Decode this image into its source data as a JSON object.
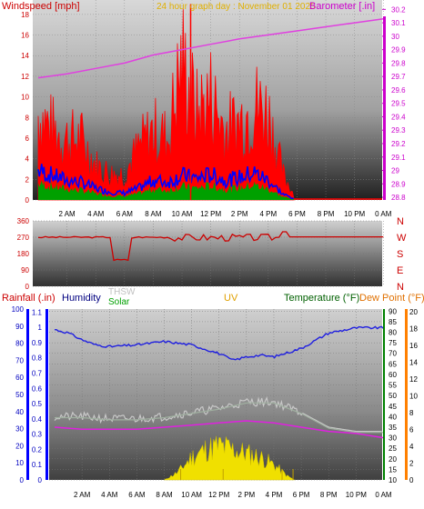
{
  "header": {
    "wind_label": "Windspeed [mph]",
    "title": "24 hour graph day : November 01 2025",
    "baro_label": "Barometer [.in]"
  },
  "legend": {
    "rainfall": "Rainfall (.in)",
    "humidity": "Humidity",
    "thsw": "THSW",
    "solar": "Solar",
    "uv": "UV",
    "temperature": "Temperature (°F)",
    "dewpoint": "Dew Point (°F)"
  },
  "colors": {
    "windspeed": "#ff0000",
    "wind_avg": "#0000ff",
    "wind_green": "#00a000",
    "barometer": "#e040e0",
    "direction": "#cc0000",
    "humidity": "#2020e0",
    "thsw": "#c8c8c8",
    "solar": "#00a000",
    "uv": "#e0a000",
    "temperature": "#006000",
    "dewpoint": "#e07000",
    "rainfall": "#c00000",
    "dewpoint_line": "#e020e0",
    "thsw_line": "#a0b0a0",
    "solar_fill": "#f0e000",
    "axis_blue": "#0000ff",
    "axis_orange": "#ff8000"
  },
  "x_ticks": [
    "2 AM",
    "4 AM",
    "6 AM",
    "8 AM",
    "10 AM",
    "12 PM",
    "2 PM",
    "4 PM",
    "6 PM",
    "8 PM",
    "10 PM",
    "0 AM"
  ],
  "chart_data": [
    {
      "type": "line",
      "title": "24 hour graph day : November 01 2025",
      "panel": "wind-baro",
      "left_axis": {
        "label": "Windspeed [mph]",
        "ticks": [
          "0",
          "2",
          "4",
          "6",
          "8",
          "10",
          "12",
          "14",
          "16",
          "18"
        ],
        "ylim": [
          0,
          19.4
        ]
      },
      "right_axis": {
        "label": "Barometer [.in]",
        "ticks": [
          "28.8",
          "28.9",
          "29",
          "29.1",
          "29.2",
          "29.3",
          "29.4",
          "29.5",
          "29.6",
          "29.7",
          "29.8",
          "29.9",
          "30",
          "30.1",
          "30.2"
        ],
        "ylim": [
          28.78,
          30.27
        ]
      },
      "x": [
        0,
        2,
        4,
        6,
        8,
        10,
        12,
        14,
        16,
        18,
        20,
        22,
        24
      ],
      "series": [
        {
          "name": "Barometer [.in]",
          "axis": "right",
          "x": [
            0,
            2,
            4,
            6,
            8,
            10,
            12,
            14,
            16,
            18,
            20,
            22,
            24
          ],
          "values": [
            29.69,
            29.72,
            29.76,
            29.8,
            29.86,
            29.9,
            29.94,
            29.98,
            30.01,
            30.04,
            30.07,
            30.1,
            30.13
          ]
        },
        {
          "name": "Windspeed [mph]",
          "axis": "left",
          "x": [
            0,
            1,
            2,
            3,
            4,
            5,
            6,
            7,
            8,
            9,
            10,
            11,
            12,
            13,
            14,
            15,
            16,
            17,
            18
          ],
          "values": [
            10,
            8,
            7,
            7,
            4,
            3,
            3,
            6,
            8,
            7,
            16,
            10,
            12,
            8,
            9,
            11,
            10,
            3,
            0
          ]
        },
        {
          "name": "",
          "axis": "left",
          "x": [
            0,
            1,
            2,
            3,
            4,
            5,
            6,
            7,
            8,
            9,
            10,
            11,
            12,
            13,
            14,
            15,
            16,
            17,
            18
          ],
          "values": [
            3,
            2.5,
            2,
            1.8,
            1.2,
            0.8,
            0.7,
            1.2,
            2,
            1.8,
            2.5,
            2.2,
            2.6,
            2,
            2.3,
            2.8,
            2,
            0.6,
            0
          ]
        }
      ]
    },
    {
      "type": "line",
      "panel": "wind-direction",
      "left_axis": {
        "ticks": [
          "0",
          "90",
          "180",
          "270",
          "360"
        ],
        "ylim": [
          0,
          360
        ]
      },
      "right_axis": {
        "ticks": [
          "N",
          "W",
          "S",
          "E",
          "N"
        ]
      },
      "series": [
        {
          "name": "",
          "x": [
            0,
            5,
            5.4,
            6,
            6.3,
            7,
            10,
            12,
            14,
            16,
            17,
            18,
            24
          ],
          "values": [
            268,
            268,
            140,
            140,
            265,
            268,
            270,
            272,
            275,
            270,
            270,
            272,
            272
          ]
        }
      ]
    },
    {
      "type": "line",
      "panel": "temperature-humidity",
      "left_axis": {
        "ticks": [
          "0",
          "0.1",
          "0.2",
          "0.3",
          "0.4",
          "0.5",
          "0.6",
          "0.7",
          "0.8",
          "0.9",
          "1",
          "1.1"
        ],
        "ylim": [
          0,
          1.12
        ]
      },
      "left_axis_2": {
        "ticks": [
          "0",
          "10",
          "20",
          "30",
          "40",
          "50",
          "60",
          "70",
          "80",
          "90",
          "100"
        ],
        "ylim": [
          0,
          100
        ]
      },
      "right_axis": {
        "ticks": [
          "10",
          "15",
          "20",
          "25",
          "30",
          "35",
          "40",
          "45",
          "50",
          "55",
          "60",
          "65",
          "70",
          "75",
          "80",
          "85",
          "90"
        ],
        "ylim": [
          10,
          91
        ]
      },
      "right_axis_2": {
        "ticks": [
          "0",
          "2",
          "4",
          "6",
          "8",
          "10",
          "12",
          "14",
          "16",
          "18",
          "20"
        ],
        "ylim": [
          0,
          20.3
        ]
      },
      "series": [
        {
          "name": "Humidity",
          "axis": "left2",
          "x": [
            0,
            1,
            2,
            3,
            4,
            6,
            8,
            10,
            12,
            13,
            14,
            15,
            16,
            18,
            20,
            22,
            24
          ],
          "values": [
            88,
            86,
            82,
            79,
            78,
            79,
            81,
            79,
            74,
            70,
            72,
            73,
            72,
            77,
            86,
            89,
            89
          ]
        },
        {
          "name": "THSW",
          "axis": "right",
          "x": [
            0,
            2,
            4,
            6,
            8,
            10,
            12,
            14,
            16,
            18,
            20,
            22,
            24
          ],
          "values": [
            40,
            40,
            39,
            39,
            40,
            42,
            44,
            47,
            47,
            42,
            35,
            33,
            33
          ]
        },
        {
          "name": "Dew Point (°F)",
          "axis": "right",
          "x": [
            0,
            2,
            4,
            6,
            8,
            10,
            12,
            14,
            16,
            18,
            20,
            22,
            24
          ],
          "values": [
            35,
            34,
            34,
            34,
            35,
            36,
            37,
            38,
            37,
            35,
            33,
            32,
            30
          ]
        },
        {
          "name": "Solar",
          "axis": "right2",
          "x": [
            8,
            9,
            10,
            11,
            12,
            13,
            14,
            15,
            16,
            17,
            17.5
          ],
          "values": [
            0,
            1,
            3,
            4,
            4.5,
            4,
            3.5,
            3,
            2,
            0.5,
            0
          ]
        }
      ]
    }
  ]
}
